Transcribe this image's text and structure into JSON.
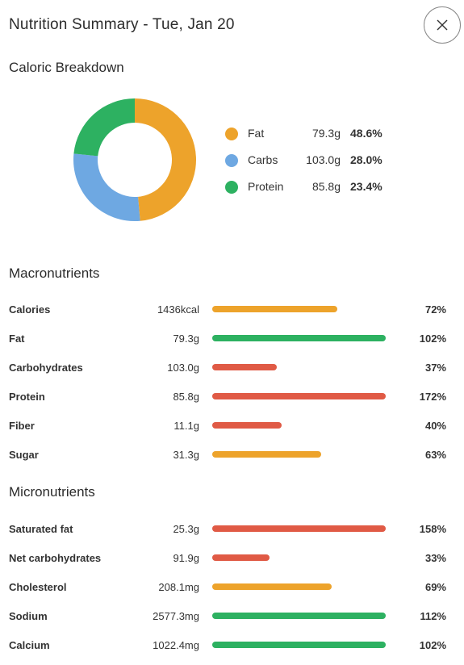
{
  "header": {
    "title": "Nutrition Summary - Tue, Jan 20"
  },
  "caloric": {
    "title": "Caloric Breakdown",
    "legend": [
      {
        "name": "Fat",
        "grams": "79.3g",
        "percent": "48.6%",
        "share": 48.6,
        "color": "#EDA32B"
      },
      {
        "name": "Carbs",
        "grams": "103.0g",
        "percent": "28.0%",
        "share": 28.0,
        "color": "#6EA8E2"
      },
      {
        "name": "Protein",
        "grams": "85.8g",
        "percent": "23.4%",
        "share": 23.4,
        "color": "#2DB161"
      }
    ]
  },
  "macro": {
    "title": "Macronutrients",
    "rows": [
      {
        "label": "Calories",
        "value": "1436kcal",
        "percent": "72%",
        "fill": 0.72,
        "status": "orange"
      },
      {
        "label": "Fat",
        "value": "79.3g",
        "percent": "102%",
        "fill": 1.0,
        "status": "green"
      },
      {
        "label": "Carbohydrates",
        "value": "103.0g",
        "percent": "37%",
        "fill": 0.37,
        "status": "red"
      },
      {
        "label": "Protein",
        "value": "85.8g",
        "percent": "172%",
        "fill": 1.0,
        "status": "red"
      },
      {
        "label": "Fiber",
        "value": "11.1g",
        "percent": "40%",
        "fill": 0.4,
        "status": "red"
      },
      {
        "label": "Sugar",
        "value": "31.3g",
        "percent": "63%",
        "fill": 0.63,
        "status": "orange"
      }
    ]
  },
  "micro": {
    "title": "Micronutrients",
    "rows": [
      {
        "label": "Saturated fat",
        "value": "25.3g",
        "percent": "158%",
        "fill": 1.0,
        "status": "red"
      },
      {
        "label": "Net carbohydrates",
        "value": "91.9g",
        "percent": "33%",
        "fill": 0.33,
        "status": "red"
      },
      {
        "label": "Cholesterol",
        "value": "208.1mg",
        "percent": "69%",
        "fill": 0.69,
        "status": "orange"
      },
      {
        "label": "Sodium",
        "value": "2577.3mg",
        "percent": "112%",
        "fill": 1.0,
        "status": "green"
      },
      {
        "label": "Calcium",
        "value": "1022.4mg",
        "percent": "102%",
        "fill": 1.0,
        "status": "green"
      }
    ]
  },
  "status_colors": {
    "orange": "#EDA32B",
    "green": "#2DB161",
    "red": "#E05A45"
  },
  "icons": {
    "close": "close-icon"
  }
}
